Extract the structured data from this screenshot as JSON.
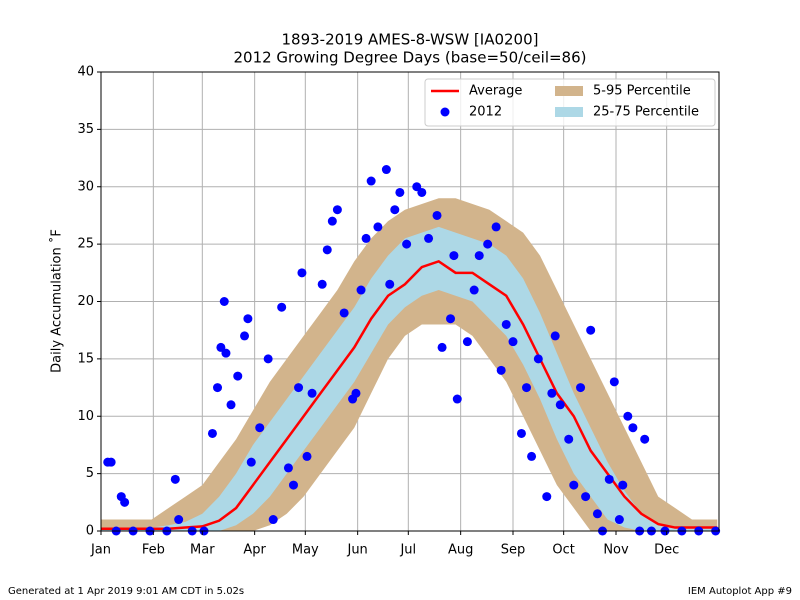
{
  "chart_data": {
    "type": "line",
    "title": "1893-2019 AMES-8-WSW [IA0200]",
    "subtitle": "2012 Growing Degree Days (base=50/ceil=86)",
    "ylabel": "Daily Accumulation ˚F",
    "x": [
      1,
      11,
      21,
      31,
      41,
      51,
      61,
      71,
      81,
      91,
      101,
      111,
      121,
      131,
      141,
      151,
      161,
      171,
      181,
      191,
      201,
      211,
      221,
      231,
      241,
      251,
      261,
      271,
      281,
      291,
      301,
      311,
      321,
      331,
      341,
      351,
      361,
      366
    ],
    "xlim": [
      1,
      367
    ],
    "xticks": [
      {
        "value": 1,
        "label": "Jan"
      },
      {
        "value": 32,
        "label": "Feb"
      },
      {
        "value": 61,
        "label": "Mar"
      },
      {
        "value": 92,
        "label": "Apr"
      },
      {
        "value": 122,
        "label": "May"
      },
      {
        "value": 153,
        "label": "Jun"
      },
      {
        "value": 183,
        "label": "Jul"
      },
      {
        "value": 214,
        "label": "Aug"
      },
      {
        "value": 245,
        "label": "Sep"
      },
      {
        "value": 275,
        "label": "Oct"
      },
      {
        "value": 306,
        "label": "Nov"
      },
      {
        "value": 336,
        "label": "Dec"
      }
    ],
    "ylim": [
      0,
      40
    ],
    "yticks": [
      0,
      5,
      10,
      15,
      20,
      25,
      30,
      35,
      40
    ],
    "grid": true,
    "legend": "upper right",
    "bands": [
      {
        "name": "5-95 Percentile",
        "color": "#d2b48c",
        "lower": [
          0,
          0,
          0,
          0,
          0,
          0,
          0,
          0,
          0,
          0,
          0.5,
          1.5,
          3,
          5,
          7,
          9,
          12,
          15,
          17,
          18,
          18,
          18,
          17,
          15,
          13,
          10,
          7,
          4,
          2,
          0,
          0,
          0,
          0,
          0,
          0,
          0,
          0,
          0
        ],
        "upper": [
          1,
          1,
          1,
          1,
          2,
          3,
          4,
          6,
          8,
          10.5,
          13,
          15,
          17,
          19,
          21,
          23.5,
          25.5,
          27,
          28,
          28.5,
          29,
          29,
          28.5,
          28,
          27,
          26,
          24,
          21,
          18,
          15,
          12,
          9,
          6,
          3,
          2,
          1,
          1,
          1
        ]
      },
      {
        "name": "25-75 Percentile",
        "color": "#add8e6",
        "lower": [
          0,
          0,
          0,
          0,
          0,
          0,
          0,
          0,
          0.5,
          1.5,
          3,
          5,
          7,
          9,
          11,
          13,
          15.5,
          18,
          19.5,
          20.5,
          21,
          20.5,
          20,
          18.5,
          17,
          14.5,
          11.5,
          8,
          5,
          3,
          1,
          0.3,
          0,
          0,
          0,
          0,
          0,
          0
        ],
        "upper": [
          0.3,
          0.3,
          0.3,
          0.3,
          0.5,
          0.8,
          1.5,
          3,
          5,
          7.5,
          9.5,
          11.5,
          13.5,
          15.5,
          17.5,
          19.5,
          22,
          24,
          25.5,
          26,
          26.5,
          26,
          25.5,
          25,
          24,
          22,
          19,
          15.5,
          12,
          9,
          6,
          3.5,
          1.5,
          0.5,
          0.3,
          0.3,
          0.3,
          0.3
        ]
      }
    ],
    "series": [
      {
        "name": "Average",
        "color": "#ff0000",
        "values": [
          0.2,
          0.2,
          0.2,
          0.2,
          0.2,
          0.3,
          0.4,
          0.9,
          2,
          4,
          6,
          8,
          10,
          12,
          14,
          16,
          18.5,
          20.5,
          21.5,
          23,
          23.5,
          22.5,
          22.5,
          21.5,
          20.5,
          18,
          15,
          12,
          10,
          7,
          5,
          3,
          1.5,
          0.6,
          0.3,
          0.3,
          0.3,
          0.3
        ]
      }
    ],
    "scatter": {
      "name": "2012",
      "color": "#0000ff",
      "x": [
        5,
        7,
        13,
        15,
        10,
        20,
        30,
        40,
        45,
        47,
        55,
        62,
        67,
        70,
        72,
        74,
        75,
        78,
        82,
        86,
        88,
        90,
        95,
        100,
        103,
        108,
        112,
        115,
        118,
        120,
        123,
        126,
        132,
        135,
        138,
        141,
        145,
        150,
        152,
        155,
        158,
        161,
        165,
        170,
        172,
        175,
        178,
        182,
        188,
        191,
        195,
        200,
        203,
        208,
        210,
        212,
        218,
        222,
        225,
        230,
        235,
        238,
        241,
        245,
        250,
        253,
        256,
        260,
        265,
        268,
        270,
        273,
        278,
        281,
        285,
        288,
        291,
        295,
        298,
        302,
        305,
        308,
        310,
        313,
        316,
        320,
        323,
        327,
        335,
        345,
        355,
        365
      ],
      "values": [
        6,
        6,
        3,
        2.5,
        0,
        0,
        0,
        0,
        4.5,
        1,
        0,
        0,
        8.5,
        12.5,
        16,
        20,
        15.5,
        11,
        13.5,
        17,
        18.5,
        6,
        9,
        15,
        1,
        19.5,
        5.5,
        4,
        12.5,
        22.5,
        6.5,
        12,
        21.5,
        24.5,
        27,
        28,
        19,
        11.5,
        12,
        21,
        25.5,
        30.5,
        26.5,
        31.5,
        21.5,
        28,
        29.5,
        25,
        30,
        29.5,
        25.5,
        27.5,
        16,
        18.5,
        24,
        11.5,
        16.5,
        21,
        24,
        25,
        26.5,
        14,
        18,
        16.5,
        8.5,
        12.5,
        6.5,
        15,
        3,
        12,
        17,
        11,
        8,
        4,
        12.5,
        3,
        17.5,
        1.5,
        0,
        4.5,
        13,
        1,
        4,
        10,
        9,
        0,
        8,
        0,
        0,
        0,
        0,
        0
      ]
    }
  },
  "footer": {
    "left": "Generated at 1 Apr 2019 9:01 AM CDT in 5.02s",
    "right": "IEM Autoplot App #9"
  }
}
